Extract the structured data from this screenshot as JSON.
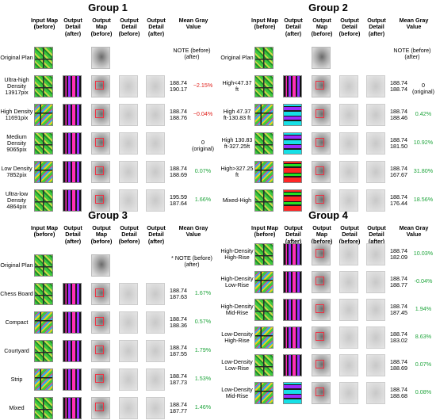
{
  "headers": {
    "input_map": "Input Map (before)",
    "output_detail": "Output Detail (after)",
    "output_map": "Output Map (before)",
    "output_detail_before": "Output Detail (before)",
    "output_detail_after": "Output Detail (after)",
    "mean_gray": "Mean Gray Value"
  },
  "groups": [
    {
      "title": "Group 1",
      "original": {
        "label": "Original Plan",
        "note": "NOTE (before) (after)"
      },
      "rows": [
        {
          "label": "Ultra-high Density 13917pix",
          "before": "188.74",
          "after": "190.17",
          "pct": "−2.15%",
          "color": "red"
        },
        {
          "label": "High Density 11691pix",
          "before": "188.74",
          "after": "188.76",
          "pct": "−0.04%",
          "color": "red"
        },
        {
          "label": "Medium Density 9065pix",
          "before": "",
          "after": "",
          "pct": "0 (original)",
          "color": "black"
        },
        {
          "label": "Low Density 7852pix",
          "before": "188.74",
          "after": "188.69",
          "pct": "0.07%",
          "color": "green"
        },
        {
          "label": "Ultra-low Density 4864pix",
          "before": "195.59",
          "after": "187.64",
          "pct": "1.66%",
          "color": "green"
        }
      ]
    },
    {
      "title": "Group 2",
      "original": {
        "label": "Original Plan",
        "note": "NOTE (before) (after)"
      },
      "rows": [
        {
          "label": "High<47.37 ft",
          "before": "188.74",
          "after": "188.74",
          "pct": "0 (original)",
          "color": "black"
        },
        {
          "label": "High 47.37 ft-130.83 ft",
          "before": "188.74",
          "after": "188.46",
          "pct": "0.42%",
          "color": "green"
        },
        {
          "label": "High 130.83 ft-327.25ft",
          "before": "188.74",
          "after": "181.50",
          "pct": "10.92%",
          "color": "green"
        },
        {
          "label": "High>327.25 ft",
          "before": "188.74",
          "after": "167.67",
          "pct": "31.80%",
          "color": "green"
        },
        {
          "label": "Mixed-High",
          "before": "188.74",
          "after": "176.44",
          "pct": "18.56%",
          "color": "green"
        }
      ]
    },
    {
      "title": "Group 3",
      "original": {
        "label": "Original Plan",
        "note": "* NOTE (before) (after)"
      },
      "rows": [
        {
          "label": "Chess Board",
          "before": "188.74",
          "after": "187.63",
          "pct": "1.67%",
          "color": "green"
        },
        {
          "label": "Compact",
          "before": "188.74",
          "after": "188.36",
          "pct": "0.57%",
          "color": "green"
        },
        {
          "label": "Courtyard",
          "before": "188.74",
          "after": "187.55",
          "pct": "1.79%",
          "color": "green"
        },
        {
          "label": "Strip",
          "before": "188.74",
          "after": "187.73",
          "pct": "1.53%",
          "color": "green"
        },
        {
          "label": "Mixed",
          "before": "188.74",
          "after": "187.77",
          "pct": "1.46%",
          "color": "green"
        }
      ]
    },
    {
      "title": "Group 4",
      "original": null,
      "rows": [
        {
          "label": "High-Density High-Rise",
          "before": "188.74",
          "after": "182.09",
          "pct": "10.03%",
          "color": "green"
        },
        {
          "label": "High-Density Low-Rise",
          "before": "188.74",
          "after": "188.77",
          "pct": "-0.04%",
          "color": "green"
        },
        {
          "label": "High-Density Mid-Rise",
          "before": "188.74",
          "after": "187.45",
          "pct": "1.94%",
          "color": "green"
        },
        {
          "label": "Low-Density High-Rise",
          "before": "188.74",
          "after": "183.02",
          "pct": "8.63%",
          "color": "green"
        },
        {
          "label": "Low-Density Low-Rise",
          "before": "188.74",
          "after": "188.69",
          "pct": "0.07%",
          "color": "green"
        },
        {
          "label": "Low-Density Mid-Rise",
          "before": "188.74",
          "after": "188.68",
          "pct": "0.08%",
          "color": "green"
        }
      ]
    }
  ]
}
